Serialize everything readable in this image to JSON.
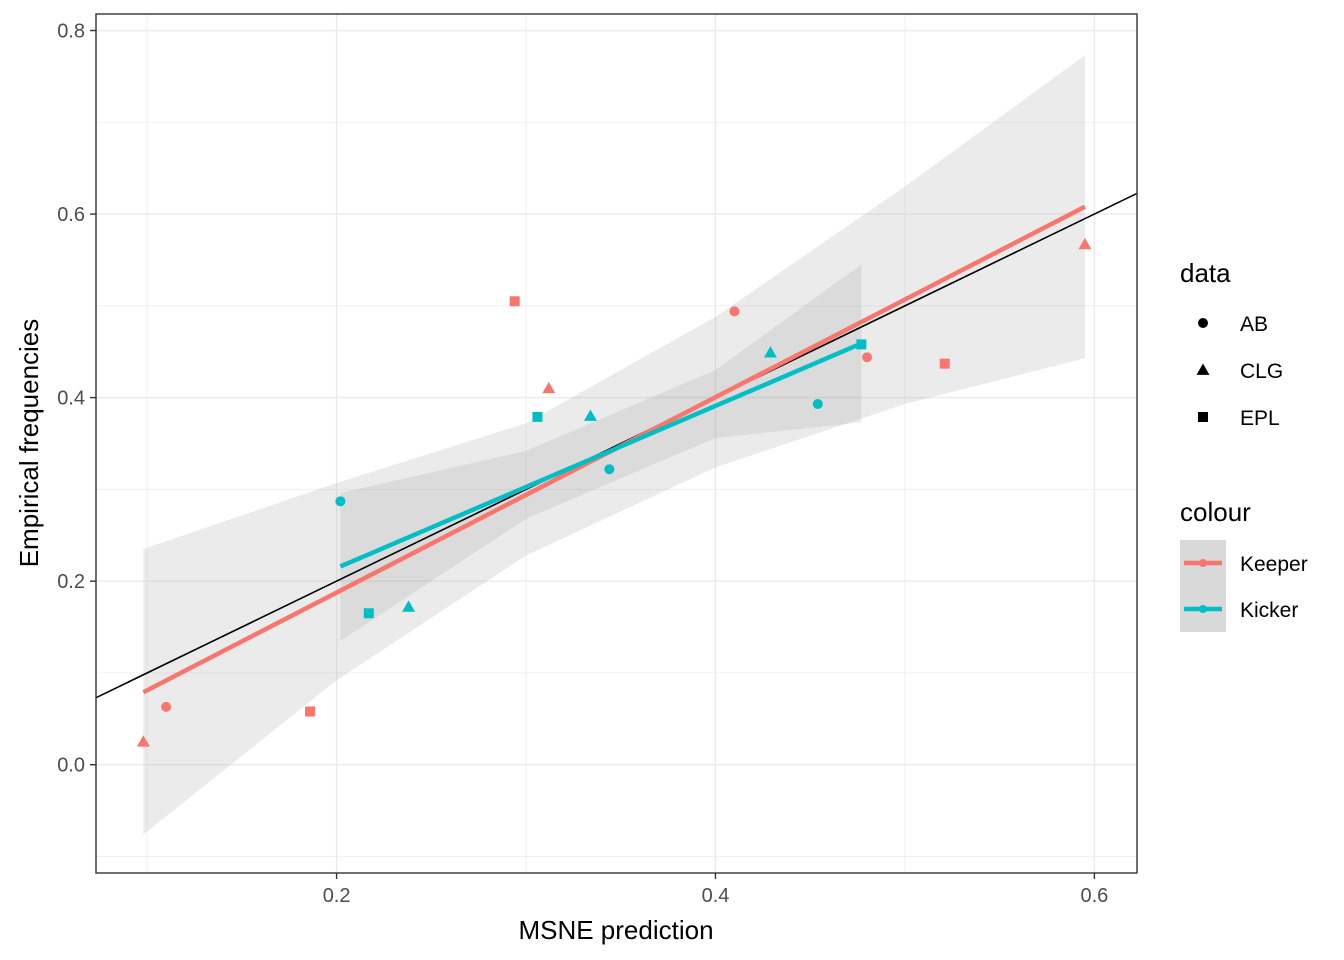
{
  "chart_data": {
    "type": "scatter",
    "title": "",
    "xlabel": "MSNE prediction",
    "ylabel": "Empirical frequencies",
    "xlim": [
      0.073,
      0.6225
    ],
    "ylim": [
      -0.118,
      0.818
    ],
    "x_ticks": [
      0.2,
      0.4,
      0.6
    ],
    "y_ticks": [
      0.0,
      0.2,
      0.4,
      0.6,
      0.8
    ],
    "x_tick_labels": [
      "0.2",
      "0.4",
      "0.6"
    ],
    "y_tick_labels": [
      "0.0",
      "0.2",
      "0.4",
      "0.6",
      "0.8"
    ],
    "grid": true,
    "legend_position": "right",
    "colors": {
      "Keeper": "#F8766D",
      "Kicker": "#00BFC4",
      "reference_line": "#000000",
      "band": "#999999"
    },
    "reference_line": {
      "slope": 1,
      "intercept": 0,
      "label": ""
    },
    "series": [
      {
        "name": "Keeper",
        "points": [
          {
            "x": 0.11,
            "y": 0.063,
            "data": "AB"
          },
          {
            "x": 0.41,
            "y": 0.494,
            "data": "AB"
          },
          {
            "x": 0.48,
            "y": 0.444,
            "data": "AB"
          },
          {
            "x": 0.098,
            "y": 0.025,
            "data": "CLG"
          },
          {
            "x": 0.312,
            "y": 0.41,
            "data": "CLG"
          },
          {
            "x": 0.595,
            "y": 0.567,
            "data": "CLG"
          },
          {
            "x": 0.186,
            "y": 0.058,
            "data": "EPL"
          },
          {
            "x": 0.294,
            "y": 0.505,
            "data": "EPL"
          },
          {
            "x": 0.521,
            "y": 0.437,
            "data": "EPL"
          }
        ],
        "fit_line": {
          "x": [
            0.098,
            0.595
          ],
          "y": [
            0.079,
            0.608
          ]
        },
        "confidence_band": {
          "x": [
            0.098,
            0.2,
            0.3,
            0.4,
            0.5,
            0.595
          ],
          "lower": [
            -0.076,
            0.092,
            0.228,
            0.324,
            0.393,
            0.443
          ],
          "upper": [
            0.235,
            0.307,
            0.372,
            0.488,
            0.63,
            0.773
          ]
        }
      },
      {
        "name": "Kicker",
        "points": [
          {
            "x": 0.202,
            "y": 0.287,
            "data": "AB"
          },
          {
            "x": 0.344,
            "y": 0.322,
            "data": "AB"
          },
          {
            "x": 0.454,
            "y": 0.393,
            "data": "AB"
          },
          {
            "x": 0.238,
            "y": 0.172,
            "data": "CLG"
          },
          {
            "x": 0.334,
            "y": 0.38,
            "data": "CLG"
          },
          {
            "x": 0.429,
            "y": 0.449,
            "data": "CLG"
          },
          {
            "x": 0.217,
            "y": 0.165,
            "data": "EPL"
          },
          {
            "x": 0.306,
            "y": 0.379,
            "data": "EPL"
          },
          {
            "x": 0.477,
            "y": 0.458,
            "data": "EPL"
          }
        ],
        "fit_line": {
          "x": [
            0.202,
            0.477
          ],
          "y": [
            0.216,
            0.459
          ]
        },
        "confidence_band": {
          "x": [
            0.202,
            0.3,
            0.4,
            0.477
          ],
          "lower": [
            0.135,
            0.268,
            0.356,
            0.373
          ],
          "upper": [
            0.296,
            0.342,
            0.43,
            0.545
          ]
        }
      }
    ],
    "legends": [
      {
        "title": "data",
        "entries": [
          {
            "label": "AB",
            "shape": "circle"
          },
          {
            "label": "CLG",
            "shape": "triangle"
          },
          {
            "label": "EPL",
            "shape": "square"
          }
        ]
      },
      {
        "title": "colour",
        "entries": [
          {
            "label": "Keeper",
            "series": "Keeper"
          },
          {
            "label": "Kicker",
            "series": "Kicker"
          }
        ]
      }
    ]
  }
}
